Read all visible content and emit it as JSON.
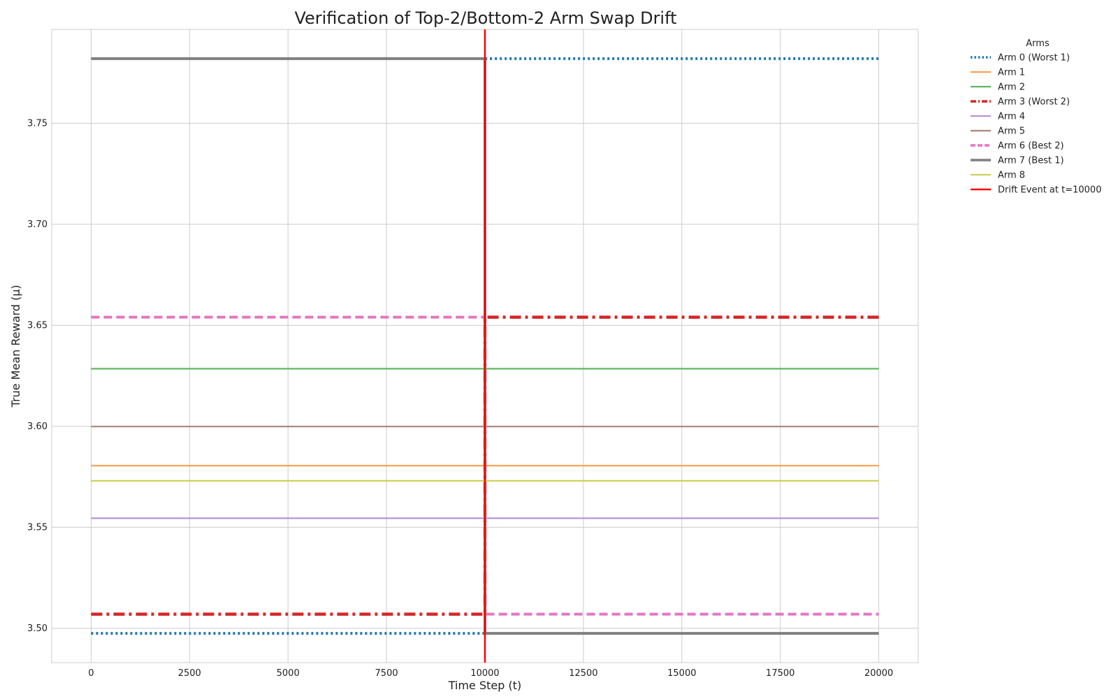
{
  "chart_data": {
    "type": "line",
    "title": "Verification of Top-2/Bottom-2 Arm Swap Drift",
    "xlabel": "Time Step (t)",
    "ylabel": "True Mean Reward (μ)",
    "xlim": [
      -1000,
      21000
    ],
    "ylim": [
      3.483,
      3.7965
    ],
    "xticks": [
      0,
      2500,
      5000,
      7500,
      10000,
      12500,
      15000,
      17500,
      20000
    ],
    "yticks": [
      3.5,
      3.55,
      3.6,
      3.65,
      3.7,
      3.75
    ],
    "grid": true,
    "legend": {
      "title": "Arms",
      "placement": "outside-top-right"
    },
    "series": [
      {
        "name": "Arm 0 (Worst 1)",
        "color": "#1f77b4",
        "style": "dotted",
        "x": [
          0,
          10000,
          10000,
          20000
        ],
        "y": [
          3.4975,
          3.4975,
          3.782,
          3.782
        ]
      },
      {
        "name": "Arm 1",
        "color": "#ff9f4a",
        "style": "solid",
        "x": [
          0,
          20000
        ],
        "y": [
          3.5805,
          3.5805
        ]
      },
      {
        "name": "Arm 2",
        "color": "#5cb85c",
        "style": "solid",
        "x": [
          0,
          20000
        ],
        "y": [
          3.6285,
          3.6285
        ]
      },
      {
        "name": "Arm 3 (Worst 2)",
        "color": "#d62728",
        "style": "dashdot",
        "x": [
          0,
          10000,
          10000,
          20000
        ],
        "y": [
          3.507,
          3.507,
          3.654,
          3.654
        ]
      },
      {
        "name": "Arm 4",
        "color": "#b396d4",
        "style": "solid",
        "x": [
          0,
          20000
        ],
        "y": [
          3.5545,
          3.5545
        ]
      },
      {
        "name": "Arm 5",
        "color": "#a9857c",
        "style": "solid",
        "x": [
          0,
          20000
        ],
        "y": [
          3.5999,
          3.5999
        ]
      },
      {
        "name": "Arm 6 (Best 2)",
        "color": "#e377c2",
        "style": "dashed",
        "x": [
          0,
          10000,
          10000,
          20000
        ],
        "y": [
          3.654,
          3.654,
          3.507,
          3.507
        ]
      },
      {
        "name": "Arm 7 (Best 1)",
        "color": "#7f7f7f",
        "style": "solid-thick",
        "x": [
          0,
          10000,
          10000,
          20000
        ],
        "y": [
          3.782,
          3.782,
          3.4975,
          3.4975
        ]
      },
      {
        "name": "Arm 8",
        "color": "#cfcf5a",
        "style": "solid",
        "x": [
          0,
          20000
        ],
        "y": [
          3.573,
          3.573
        ]
      }
    ],
    "annotations": [
      {
        "type": "vline",
        "x": 10000,
        "label": "Drift Event at t=10000",
        "color": "#ff0000"
      }
    ]
  }
}
